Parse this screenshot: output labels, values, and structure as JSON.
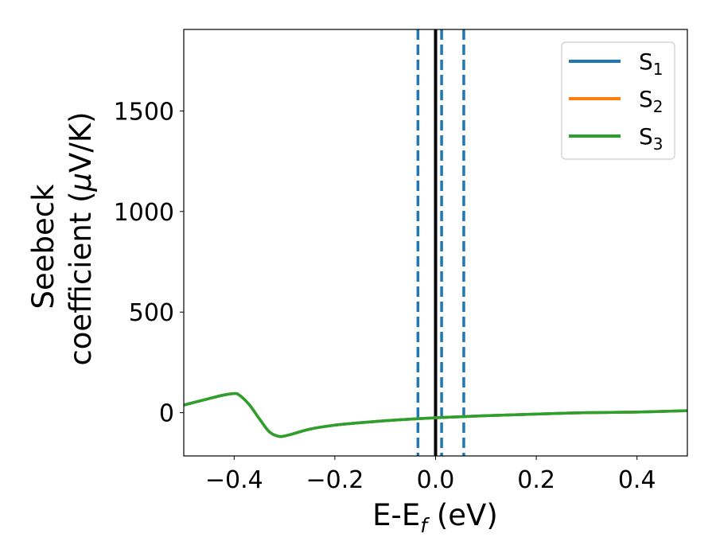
{
  "chart_data": {
    "type": "line",
    "title": "",
    "xlabel": "E-E",
    "xlabel_sub": "f",
    "xlabel_unit": " (eV)",
    "ylabel_line1": "Seebeck",
    "ylabel_line2": "coefficient  (",
    "ylabel_mu": "μ",
    "ylabel_unit": "V/K)",
    "xlim": [
      -0.5,
      0.5
    ],
    "ylim": [
      -215,
      1905
    ],
    "grid": false,
    "legend_position": "top-right",
    "xticks": [
      -0.4,
      -0.2,
      0.0,
      0.2,
      0.4
    ],
    "xtick_labels": [
      "−0.4",
      "−0.2",
      "0.0",
      "0.2",
      "0.4"
    ],
    "yticks": [
      0,
      500,
      1000,
      1500
    ],
    "ytick_labels": [
      "0",
      "500",
      "1000",
      "1500"
    ],
    "series": [
      {
        "name": "S",
        "sub": "1",
        "color": "#1f77b4",
        "x": [
          -0.5,
          -0.45,
          -0.42,
          -0.4,
          -0.39,
          -0.37,
          -0.35,
          -0.33,
          -0.31,
          -0.29,
          -0.25,
          -0.2,
          -0.15,
          -0.1,
          -0.05,
          0.0,
          0.05,
          0.1,
          0.15,
          0.2,
          0.3,
          0.4,
          0.5
        ],
        "y": [
          38,
          70,
          88,
          95,
          88,
          40,
          -30,
          -95,
          -118,
          -110,
          -82,
          -62,
          -50,
          -40,
          -32,
          -25,
          -20,
          -15,
          -11,
          -7,
          0,
          3,
          10
        ]
      },
      {
        "name": "S",
        "sub": "2",
        "color": "#ff7f0e",
        "x": [
          -0.5,
          -0.45,
          -0.42,
          -0.4,
          -0.39,
          -0.37,
          -0.35,
          -0.33,
          -0.31,
          -0.29,
          -0.25,
          -0.2,
          -0.15,
          -0.1,
          -0.05,
          0.0,
          0.05,
          0.1,
          0.15,
          0.2,
          0.3,
          0.4,
          0.5
        ],
        "y": [
          38,
          70,
          88,
          95,
          88,
          40,
          -30,
          -95,
          -118,
          -110,
          -82,
          -62,
          -50,
          -40,
          -32,
          -25,
          -20,
          -15,
          -11,
          -7,
          0,
          3,
          10
        ]
      },
      {
        "name": "S",
        "sub": "3",
        "color": "#2ca02c",
        "x": [
          -0.5,
          -0.45,
          -0.42,
          -0.4,
          -0.39,
          -0.37,
          -0.35,
          -0.33,
          -0.31,
          -0.29,
          -0.25,
          -0.2,
          -0.15,
          -0.1,
          -0.05,
          0.0,
          0.05,
          0.1,
          0.15,
          0.2,
          0.3,
          0.4,
          0.5
        ],
        "y": [
          38,
          70,
          88,
          95,
          88,
          40,
          -30,
          -95,
          -118,
          -110,
          -82,
          -62,
          -50,
          -40,
          -32,
          -25,
          -20,
          -15,
          -11,
          -7,
          0,
          3,
          10
        ]
      }
    ],
    "vertical_lines": [
      {
        "x": 0.0,
        "style": "solid",
        "color": "#000000"
      },
      {
        "x": -0.035,
        "style": "dashed",
        "color": "#1f77b4"
      },
      {
        "x": 0.012,
        "style": "dashed",
        "color": "#1f77b4"
      },
      {
        "x": 0.056,
        "style": "dashed",
        "color": "#1f77b4"
      }
    ]
  }
}
